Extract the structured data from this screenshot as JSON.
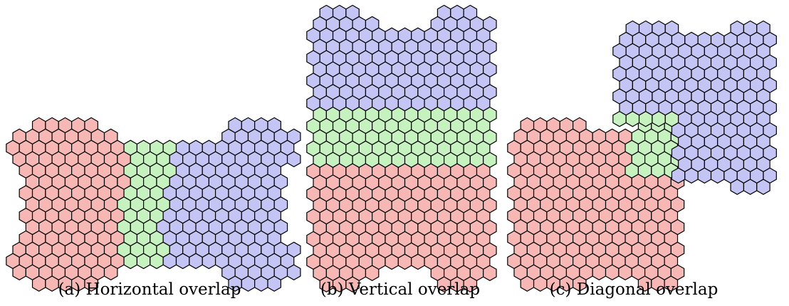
{
  "colors": {
    "red": "#f7b8b5",
    "green": "#c6f2bf",
    "blue": "#c4c4f5",
    "stroke": "#000000"
  },
  "panels": [
    {
      "id": "a",
      "caption": "(a) Horizontal overlap",
      "regions": [
        "red",
        "green",
        "blue"
      ],
      "direction": "horizontal"
    },
    {
      "id": "b",
      "caption": "(b) Vertical overlap",
      "regions": [
        "blue",
        "green",
        "red"
      ],
      "direction": "vertical"
    },
    {
      "id": "c",
      "caption": "(c) Diagonal overlap",
      "regions": [
        "red",
        "green",
        "blue"
      ],
      "direction": "diagonal"
    }
  ]
}
